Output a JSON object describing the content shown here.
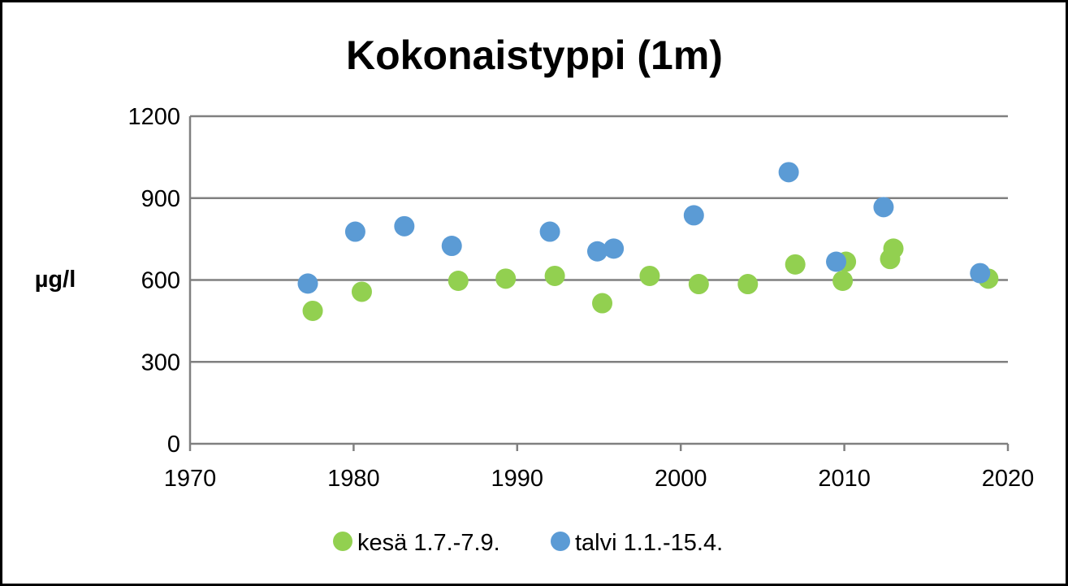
{
  "chart_data": {
    "type": "scatter",
    "title": "Kokonaistyppi (1m)",
    "ylabel": "µg/l",
    "xlim": [
      1970,
      2020
    ],
    "ylim": [
      0,
      1200
    ],
    "x_ticks": [
      1970,
      1980,
      1990,
      2000,
      2010,
      2020
    ],
    "y_ticks": [
      0,
      300,
      600,
      900,
      1200
    ],
    "grid": "horizontal",
    "legend_position": "bottom",
    "series": [
      {
        "name": "kesä 1.7.-7.9.",
        "color": "#92D050",
        "points": [
          {
            "x": 1977.5,
            "y": 487
          },
          {
            "x": 1980.5,
            "y": 557
          },
          {
            "x": 1986.4,
            "y": 597
          },
          {
            "x": 1989.3,
            "y": 605
          },
          {
            "x": 1992.3,
            "y": 615
          },
          {
            "x": 1995.2,
            "y": 515
          },
          {
            "x": 1998.1,
            "y": 615
          },
          {
            "x": 2001.1,
            "y": 585
          },
          {
            "x": 2004.1,
            "y": 585
          },
          {
            "x": 2007.0,
            "y": 657
          },
          {
            "x": 2009.9,
            "y": 597
          },
          {
            "x": 2010.1,
            "y": 667
          },
          {
            "x": 2012.8,
            "y": 677
          },
          {
            "x": 2013.0,
            "y": 715
          },
          {
            "x": 2018.8,
            "y": 605
          }
        ]
      },
      {
        "name": "talvi 1.1.-15.4.",
        "color": "#5B9BD5",
        "points": [
          {
            "x": 1977.2,
            "y": 587
          },
          {
            "x": 1980.1,
            "y": 777
          },
          {
            "x": 1983.1,
            "y": 797
          },
          {
            "x": 1986.0,
            "y": 725
          },
          {
            "x": 1992.0,
            "y": 777
          },
          {
            "x": 1994.9,
            "y": 705
          },
          {
            "x": 1995.9,
            "y": 715
          },
          {
            "x": 2000.8,
            "y": 837
          },
          {
            "x": 2006.6,
            "y": 995
          },
          {
            "x": 2009.5,
            "y": 667
          },
          {
            "x": 2012.4,
            "y": 867
          },
          {
            "x": 2018.3,
            "y": 625
          }
        ]
      }
    ]
  }
}
